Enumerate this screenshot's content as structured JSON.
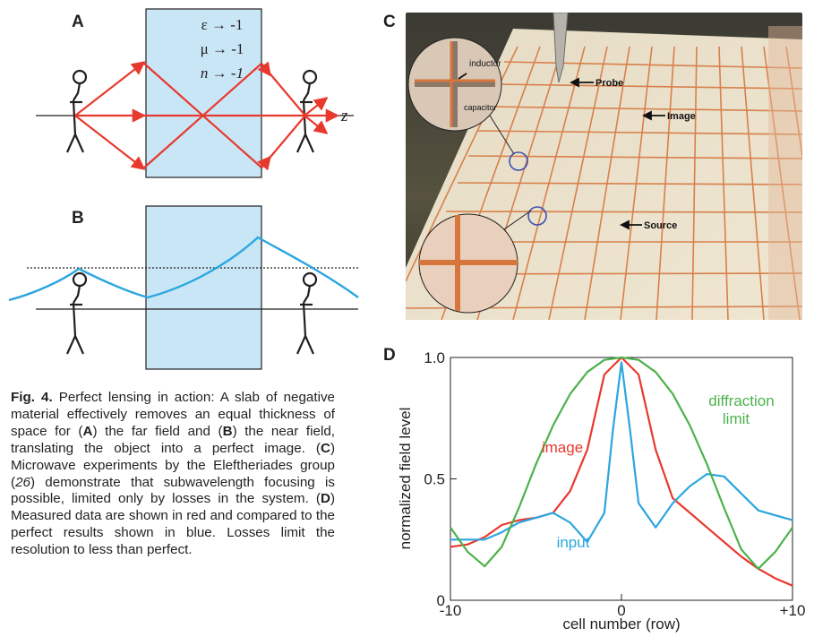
{
  "panels": {
    "a": {
      "letter": "A",
      "eq_eps": "ε → -1",
      "eq_mu": "μ → -1",
      "eq_n": "n → -1",
      "axis_label": "z"
    },
    "b": {
      "letter": "B"
    },
    "c": {
      "letter": "C",
      "labels": {
        "inductor": "inductor",
        "capacitor": "capacitor",
        "probe": "Probe",
        "image": "Image",
        "source": "Source"
      }
    },
    "d": {
      "letter": "D"
    }
  },
  "caption": {
    "fig": "Fig. 4.",
    "t1": " Perfect lensing in action: A slab of negative material effectively removes an equal thickness of space for (",
    "a": "A",
    "t2": ") the far field and (",
    "b": "B",
    "t3": ") the near field, translating the object into a perfect image. (",
    "c": "C",
    "t4": ") Microwave experiments by the Eleftheriades group (",
    "ref": "26",
    "t5": ") demonstrate that subwavelength focusing is possible, limited only by losses in the system. (",
    "d": "D",
    "t6": ") Measured data are shown in red and compared to the perfect results shown in blue. Losses limit the resolution to less than perfect."
  },
  "colors": {
    "red": "#e8392e",
    "blue": "#2ba6df",
    "green": "#4db24b",
    "slab": "#c9e6f7"
  },
  "chart_data": {
    "type": "line",
    "xlabel": "cell number (row)",
    "ylabel": "normalized field level",
    "xlim": [
      -10,
      10
    ],
    "ylim": [
      0,
      1
    ],
    "xticks": [
      "-10",
      "0",
      "+10"
    ],
    "yticks": [
      "0",
      "0.5",
      "1.0"
    ],
    "annotations": [
      "diffraction",
      "limit",
      "image",
      "input"
    ],
    "series": [
      {
        "name": "image",
        "color": "#e8392e",
        "x": [
          -10,
          -9,
          -8,
          -7,
          -6,
          -5,
          -4,
          -3,
          -2,
          -1,
          0,
          1,
          2,
          3,
          4,
          5,
          6,
          7,
          8,
          9,
          10
        ],
        "y": [
          0.22,
          0.23,
          0.26,
          0.31,
          0.33,
          0.34,
          0.36,
          0.45,
          0.62,
          0.93,
          1.0,
          0.93,
          0.62,
          0.42,
          0.36,
          0.3,
          0.24,
          0.18,
          0.13,
          0.09,
          0.06
        ]
      },
      {
        "name": "input",
        "color": "#2ba6df",
        "x": [
          -10,
          -9,
          -8,
          -7,
          -6,
          -5,
          -4,
          -3,
          -2,
          -1,
          -0.5,
          0,
          0.5,
          1,
          2,
          3,
          4,
          5,
          6,
          7,
          8,
          9,
          10
        ],
        "y": [
          0.25,
          0.25,
          0.25,
          0.28,
          0.32,
          0.34,
          0.36,
          0.32,
          0.24,
          0.36,
          0.7,
          0.98,
          0.7,
          0.4,
          0.3,
          0.4,
          0.47,
          0.52,
          0.51,
          0.44,
          0.37,
          0.35,
          0.33
        ]
      },
      {
        "name": "diffraction limit",
        "color": "#4db24b",
        "x": [
          -10,
          -9,
          -8,
          -7,
          -6,
          -5,
          -4,
          -3,
          -2,
          -1,
          0,
          1,
          2,
          3,
          4,
          5,
          6,
          7,
          8,
          9,
          10
        ],
        "y": [
          0.3,
          0.2,
          0.14,
          0.22,
          0.38,
          0.56,
          0.72,
          0.85,
          0.94,
          0.99,
          1.0,
          0.99,
          0.94,
          0.85,
          0.72,
          0.56,
          0.38,
          0.21,
          0.13,
          0.2,
          0.3
        ]
      }
    ]
  }
}
